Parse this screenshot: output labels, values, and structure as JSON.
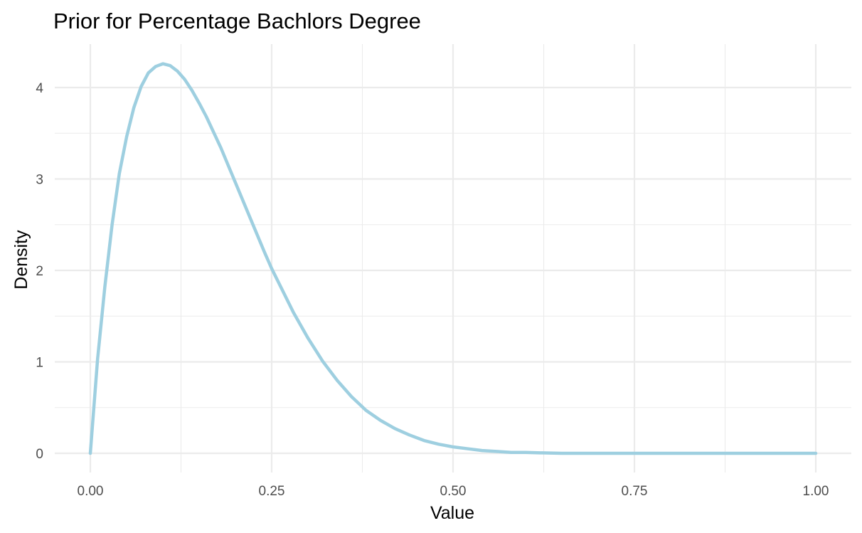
{
  "chart_data": {
    "type": "line",
    "title": "Prior for Percentage Bachlors Degree",
    "xlabel": "Value",
    "ylabel": "Density",
    "xlim": [
      0,
      1
    ],
    "ylim": [
      0,
      4.26
    ],
    "x_ticks": [
      "0.00",
      "0.25",
      "0.50",
      "0.75",
      "1.00"
    ],
    "y_ticks": [
      "0",
      "1",
      "2",
      "3",
      "4"
    ],
    "grid": true,
    "legend": "none",
    "line_color": "#9ecfe0",
    "series": [
      {
        "x": [
          0,
          0.01,
          0.02,
          0.03,
          0.04,
          0.05,
          0.06,
          0.07,
          0.08,
          0.09,
          0.1,
          0.11,
          0.12,
          0.13,
          0.14,
          0.15,
          0.16,
          0.18,
          0.2,
          0.22,
          0.24,
          0.25,
          0.26,
          0.28,
          0.3,
          0.32,
          0.34,
          0.36,
          0.38,
          0.4,
          0.42,
          0.44,
          0.46,
          0.48,
          0.5,
          0.52,
          0.54,
          0.56,
          0.58,
          0.6,
          0.62,
          0.65,
          0.7,
          0.75,
          0.8,
          0.85,
          0.9,
          0.95,
          1.0
        ],
        "y": [
          0,
          1.03,
          1.82,
          2.5,
          3.06,
          3.46,
          3.78,
          4.01,
          4.16,
          4.23,
          4.26,
          4.24,
          4.18,
          4.09,
          3.97,
          3.83,
          3.68,
          3.34,
          2.96,
          2.58,
          2.2,
          2.02,
          1.86,
          1.54,
          1.26,
          1.01,
          0.8,
          0.62,
          0.47,
          0.36,
          0.27,
          0.2,
          0.14,
          0.1,
          0.07,
          0.05,
          0.03,
          0.02,
          0.01,
          0.01,
          0.005,
          0,
          0,
          0,
          0,
          0,
          0,
          0,
          0
        ]
      }
    ]
  }
}
